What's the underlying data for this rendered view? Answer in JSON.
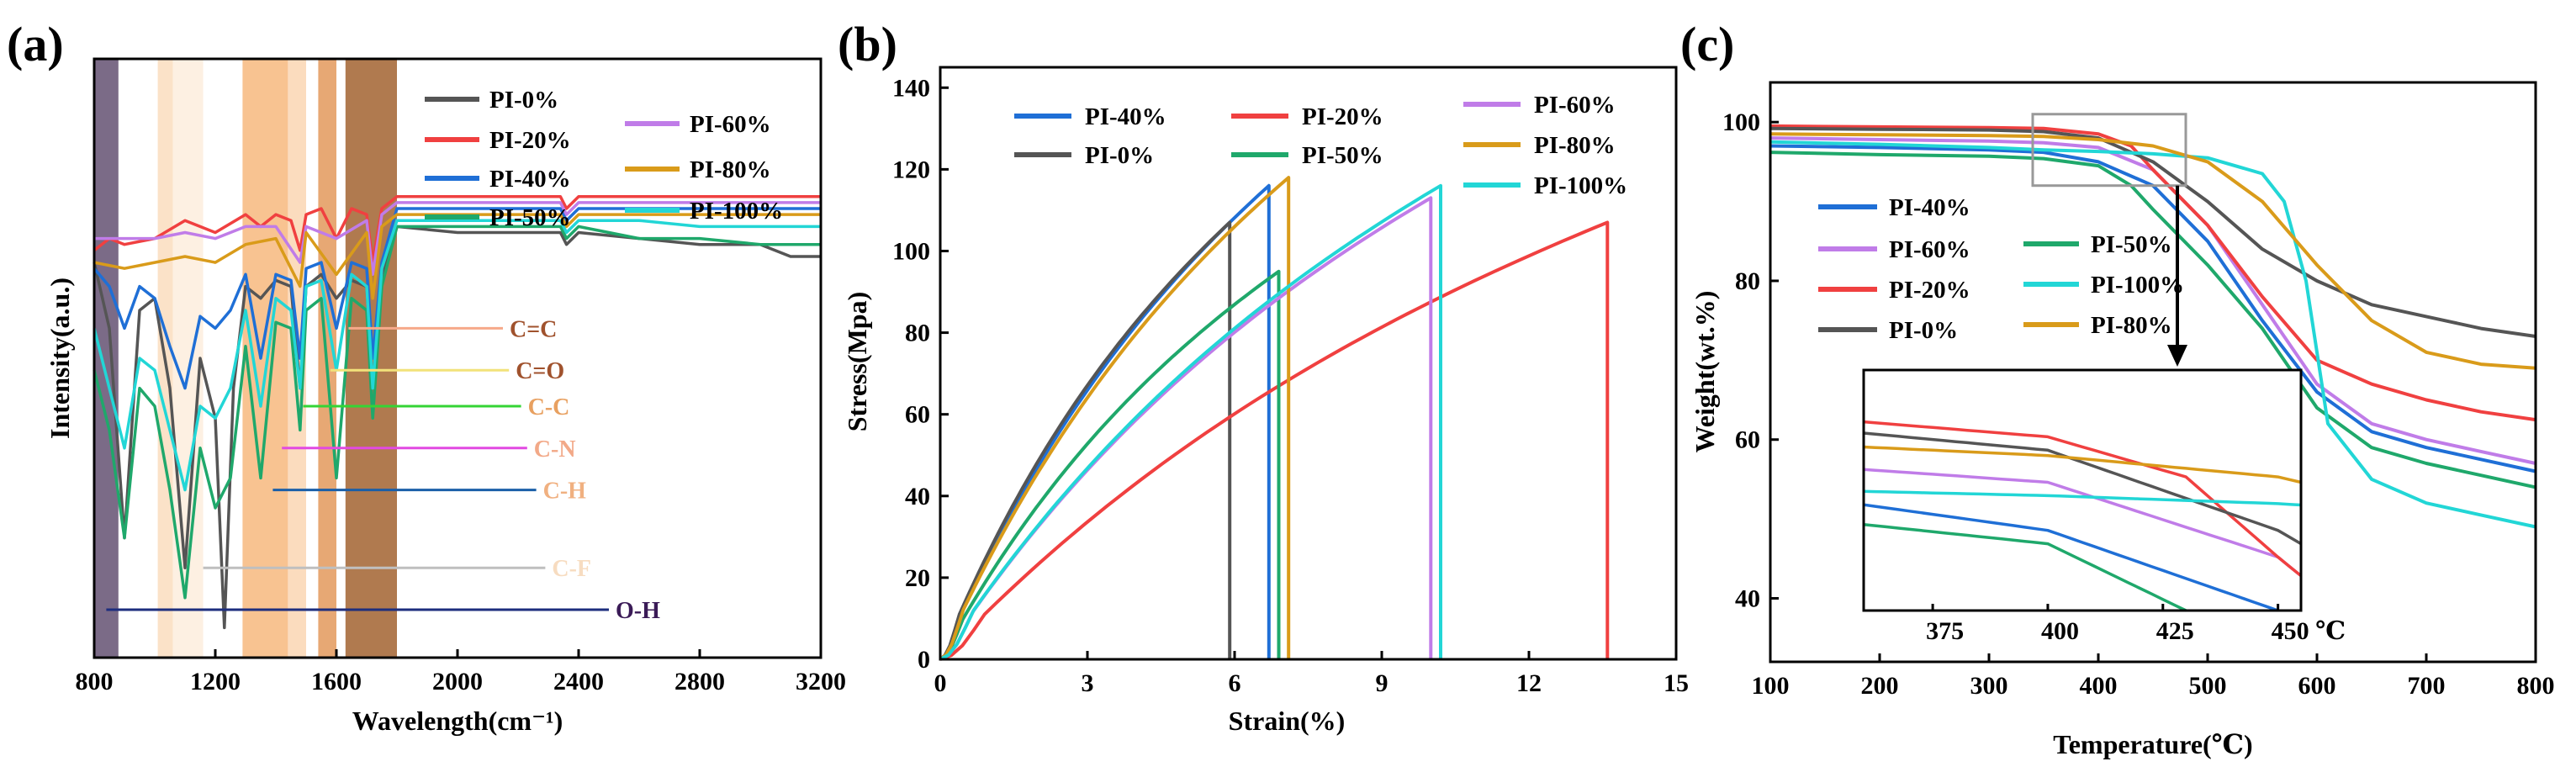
{
  "colors": {
    "PI-0%": "#555555",
    "PI-20%": "#f04040",
    "PI-40%": "#1f6fd6",
    "PI-50%": "#1fa86b",
    "PI-60%": "#c07ce8",
    "PI-80%": "#d99b1a",
    "PI-100%": "#22d6d6"
  },
  "chart_data": [
    {
      "panel": "(a)",
      "type": "line",
      "title": "",
      "xlabel": "Wavelength(cm⁻¹)",
      "ylabel": "Intensity(a.u.)",
      "xlim": [
        800,
        3200
      ],
      "ylim": [
        0,
        1
      ],
      "x_ticks": [
        800,
        1200,
        1600,
        2000,
        2400,
        2800,
        3200
      ],
      "series": [
        {
          "name": "PI-0%",
          "x": [
            800,
            850,
            900,
            950,
            1000,
            1050,
            1100,
            1150,
            1200,
            1230,
            1260,
            1300,
            1350,
            1400,
            1450,
            1480,
            1500,
            1550,
            1600,
            1650,
            1700,
            1720,
            1750,
            1800,
            2000,
            2200,
            2340,
            2360,
            2400,
            2600,
            2800,
            3000,
            3100,
            3200
          ],
          "y": [
            0.66,
            0.55,
            0.2,
            0.58,
            0.6,
            0.45,
            0.15,
            0.5,
            0.4,
            0.05,
            0.45,
            0.62,
            0.6,
            0.63,
            0.62,
            0.45,
            0.62,
            0.64,
            0.6,
            0.63,
            0.62,
            0.45,
            0.64,
            0.72,
            0.71,
            0.71,
            0.71,
            0.69,
            0.71,
            0.7,
            0.69,
            0.69,
            0.67,
            0.67
          ]
        },
        {
          "name": "PI-20%",
          "x": [
            800,
            850,
            900,
            1000,
            1100,
            1200,
            1300,
            1350,
            1400,
            1450,
            1480,
            1500,
            1550,
            1600,
            1650,
            1700,
            1720,
            1750,
            1800,
            2000,
            2200,
            2340,
            2360,
            2400,
            2600,
            2800,
            3000,
            3200
          ],
          "y": [
            0.68,
            0.7,
            0.69,
            0.7,
            0.73,
            0.71,
            0.74,
            0.72,
            0.74,
            0.73,
            0.68,
            0.74,
            0.75,
            0.7,
            0.75,
            0.74,
            0.66,
            0.75,
            0.77,
            0.77,
            0.77,
            0.77,
            0.75,
            0.77,
            0.77,
            0.77,
            0.77,
            0.77
          ]
        },
        {
          "name": "PI-40%",
          "x": [
            800,
            850,
            900,
            950,
            1000,
            1050,
            1100,
            1150,
            1200,
            1250,
            1300,
            1350,
            1400,
            1450,
            1480,
            1500,
            1550,
            1600,
            1650,
            1700,
            1720,
            1750,
            1800,
            2000,
            2200,
            2340,
            2360,
            2400,
            2600,
            2800,
            3000,
            3200
          ],
          "y": [
            0.65,
            0.62,
            0.55,
            0.62,
            0.6,
            0.52,
            0.45,
            0.57,
            0.55,
            0.58,
            0.64,
            0.5,
            0.64,
            0.63,
            0.5,
            0.65,
            0.66,
            0.55,
            0.66,
            0.65,
            0.5,
            0.66,
            0.75,
            0.75,
            0.75,
            0.75,
            0.73,
            0.75,
            0.75,
            0.75,
            0.75,
            0.75
          ]
        },
        {
          "name": "PI-50%",
          "x": [
            800,
            850,
            900,
            950,
            1000,
            1050,
            1100,
            1150,
            1200,
            1250,
            1300,
            1350,
            1400,
            1450,
            1480,
            1500,
            1550,
            1600,
            1650,
            1700,
            1720,
            1750,
            1800,
            2000,
            2200,
            2340,
            2360,
            2400,
            2600,
            2800,
            3000,
            3200
          ],
          "y": [
            0.48,
            0.38,
            0.2,
            0.45,
            0.42,
            0.28,
            0.1,
            0.35,
            0.25,
            0.3,
            0.52,
            0.3,
            0.56,
            0.55,
            0.38,
            0.58,
            0.6,
            0.3,
            0.6,
            0.58,
            0.4,
            0.62,
            0.72,
            0.72,
            0.72,
            0.72,
            0.7,
            0.72,
            0.7,
            0.7,
            0.69,
            0.69
          ]
        },
        {
          "name": "PI-60%",
          "x": [
            800,
            900,
            1000,
            1100,
            1200,
            1300,
            1400,
            1480,
            1500,
            1600,
            1700,
            1720,
            1750,
            1800,
            2000,
            2200,
            2340,
            2360,
            2400,
            2600,
            2800,
            3000,
            3200
          ],
          "y": [
            0.7,
            0.7,
            0.7,
            0.71,
            0.7,
            0.72,
            0.72,
            0.66,
            0.72,
            0.7,
            0.73,
            0.64,
            0.74,
            0.76,
            0.76,
            0.76,
            0.76,
            0.74,
            0.76,
            0.76,
            0.76,
            0.76,
            0.76
          ]
        },
        {
          "name": "PI-80%",
          "x": [
            800,
            900,
            1000,
            1100,
            1200,
            1300,
            1400,
            1480,
            1500,
            1600,
            1700,
            1720,
            1750,
            1800,
            2000,
            2200,
            2340,
            2360,
            2400,
            2600,
            2800,
            3000,
            3200
          ],
          "y": [
            0.66,
            0.65,
            0.66,
            0.67,
            0.66,
            0.69,
            0.7,
            0.62,
            0.71,
            0.64,
            0.71,
            0.6,
            0.72,
            0.74,
            0.74,
            0.74,
            0.74,
            0.72,
            0.74,
            0.74,
            0.74,
            0.74,
            0.74
          ]
        },
        {
          "name": "PI-100%",
          "x": [
            800,
            850,
            900,
            950,
            1000,
            1050,
            1100,
            1150,
            1200,
            1250,
            1300,
            1350,
            1400,
            1450,
            1480,
            1500,
            1550,
            1600,
            1650,
            1700,
            1720,
            1750,
            1800,
            2000,
            2200,
            2340,
            2360,
            2400,
            2600,
            2800,
            3000,
            3200
          ],
          "y": [
            0.55,
            0.45,
            0.35,
            0.5,
            0.48,
            0.38,
            0.28,
            0.42,
            0.4,
            0.45,
            0.58,
            0.42,
            0.6,
            0.58,
            0.45,
            0.62,
            0.63,
            0.48,
            0.64,
            0.62,
            0.45,
            0.65,
            0.73,
            0.73,
            0.73,
            0.73,
            0.71,
            0.73,
            0.73,
            0.72,
            0.72,
            0.72
          ]
        }
      ],
      "bands": [
        {
          "x1": 800,
          "x2": 880,
          "color": "#7b6b87"
        },
        {
          "x1": 1010,
          "x2": 1060,
          "color": "#fbe2c8"
        },
        {
          "x1": 1060,
          "x2": 1160,
          "color": "#fdf0e2"
        },
        {
          "x1": 1290,
          "x2": 1440,
          "color": "#f8c391"
        },
        {
          "x1": 1440,
          "x2": 1500,
          "color": "#fbdcbe"
        },
        {
          "x1": 1540,
          "x2": 1600,
          "color": "#e7a874"
        },
        {
          "x1": 1630,
          "x2": 1800,
          "color": "#b07a4f"
        }
      ],
      "annotations": [
        {
          "label": "C=C",
          "x1": 1640,
          "x2": 2150,
          "y": 0.55,
          "line_color": "#f6a98a",
          "text_color": "#a0522d"
        },
        {
          "label": "C=O",
          "x1": 1580,
          "x2": 2170,
          "y": 0.48,
          "line_color": "#f2e27a",
          "text_color": "#a0522d"
        },
        {
          "label": "C-C",
          "x1": 1490,
          "x2": 2210,
          "y": 0.42,
          "line_color": "#35d435",
          "text_color": "#e8a060"
        },
        {
          "label": "C-N",
          "x1": 1420,
          "x2": 2230,
          "y": 0.35,
          "line_color": "#e24ae2",
          "text_color": "#f2a988"
        },
        {
          "label": "C-H",
          "x1": 1390,
          "x2": 2260,
          "y": 0.28,
          "line_color": "#1a5fa8",
          "text_color": "#f0b080"
        },
        {
          "label": "C-F",
          "x1": 1160,
          "x2": 2290,
          "y": 0.15,
          "line_color": "#bfbfbf",
          "text_color": "#f7dcc0"
        },
        {
          "label": "O-H",
          "x1": 840,
          "x2": 2500,
          "y": 0.08,
          "line_color": "#1d2e7e",
          "text_color": "#3b1b57"
        }
      ],
      "legend": [
        "PI-0%",
        "PI-20%",
        "PI-40%",
        "PI-50%",
        "PI-60%",
        "PI-80%",
        "PI-100%"
      ]
    },
    {
      "panel": "(b)",
      "type": "line",
      "title": "",
      "xlabel": "Strain(%)",
      "ylabel": "Stress(Mpa)",
      "xlim": [
        0,
        15
      ],
      "ylim": [
        0,
        145
      ],
      "x_ticks": [
        0,
        3,
        6,
        9,
        12,
        15
      ],
      "y_ticks": [
        0,
        20,
        40,
        60,
        80,
        100,
        120,
        140
      ],
      "series": [
        {
          "name": "PI-40%",
          "max_strain": 6.7,
          "max_stress": 116
        },
        {
          "name": "PI-0%",
          "max_strain": 5.9,
          "max_stress": 107
        },
        {
          "name": "PI-20%",
          "max_strain": 13.6,
          "max_stress": 107
        },
        {
          "name": "PI-50%",
          "max_strain": 6.9,
          "max_stress": 95
        },
        {
          "name": "PI-60%",
          "max_strain": 10.0,
          "max_stress": 113
        },
        {
          "name": "PI-80%",
          "max_strain": 7.1,
          "max_stress": 118
        },
        {
          "name": "PI-100%",
          "max_strain": 10.2,
          "max_stress": 116
        }
      ],
      "legend": [
        "PI-40%",
        "PI-0%",
        "PI-20%",
        "PI-50%",
        "PI-60%",
        "PI-80%",
        "PI-100%"
      ]
    },
    {
      "panel": "(c)",
      "type": "line",
      "title": "",
      "xlabel": "Temperature(℃)",
      "ylabel": "Weight(wt.%)",
      "xlim": [
        100,
        800
      ],
      "ylim": [
        32,
        105
      ],
      "x_ticks": [
        100,
        200,
        300,
        400,
        500,
        600,
        700,
        800
      ],
      "y_ticks": [
        40,
        60,
        80,
        100
      ],
      "series": [
        {
          "name": "PI-40%",
          "x": [
            100,
            200,
            300,
            350,
            400,
            450,
            500,
            550,
            600,
            650,
            700,
            750,
            800
          ],
          "y": [
            97.0,
            96.8,
            96.5,
            96.2,
            95.0,
            92.0,
            85.0,
            75.0,
            66.0,
            61.0,
            59.0,
            57.5,
            56.0
          ]
        },
        {
          "name": "PI-60%",
          "x": [
            100,
            200,
            300,
            350,
            400,
            450,
            500,
            550,
            600,
            650,
            700,
            750,
            800
          ],
          "y": [
            98.0,
            97.8,
            97.6,
            97.4,
            96.8,
            94.0,
            87.0,
            77.0,
            67.0,
            62.0,
            60.0,
            58.5,
            57.0
          ]
        },
        {
          "name": "PI-20%",
          "x": [
            100,
            200,
            300,
            350,
            400,
            430,
            450,
            500,
            550,
            600,
            650,
            700,
            750,
            800
          ],
          "y": [
            99.5,
            99.4,
            99.3,
            99.2,
            98.5,
            97.0,
            94.0,
            87.0,
            78.0,
            70.0,
            67.0,
            65.0,
            63.5,
            62.5
          ]
        },
        {
          "name": "PI-0%",
          "x": [
            100,
            200,
            300,
            350,
            400,
            450,
            500,
            550,
            600,
            650,
            700,
            750,
            800
          ],
          "y": [
            99.2,
            99.1,
            99.0,
            98.8,
            98.0,
            95.0,
            90.0,
            84.0,
            80.0,
            77.0,
            75.5,
            74.0,
            73.0
          ]
        },
        {
          "name": "PI-50%",
          "x": [
            100,
            200,
            300,
            350,
            400,
            430,
            450,
            500,
            550,
            600,
            650,
            700,
            750,
            800
          ],
          "y": [
            96.2,
            95.9,
            95.7,
            95.4,
            94.5,
            92.0,
            89.0,
            82.0,
            74.0,
            64.0,
            59.0,
            57.0,
            55.5,
            54.0
          ]
        },
        {
          "name": "PI-100%",
          "x": [
            100,
            200,
            300,
            350,
            400,
            450,
            500,
            550,
            570,
            590,
            610,
            650,
            700,
            750,
            800
          ],
          "y": [
            97.5,
            97.2,
            96.8,
            96.5,
            96.3,
            96.0,
            95.5,
            93.5,
            90.0,
            80.0,
            62.0,
            55.0,
            52.0,
            50.5,
            49.0
          ]
        },
        {
          "name": "PI-80%",
          "x": [
            100,
            200,
            300,
            350,
            400,
            450,
            500,
            550,
            600,
            650,
            700,
            750,
            800
          ],
          "y": [
            98.5,
            98.4,
            98.3,
            98.2,
            97.8,
            97.0,
            95.0,
            90.0,
            82.0,
            75.0,
            71.0,
            69.5,
            69.0
          ]
        }
      ],
      "inset": {
        "xlim": [
          360,
          455
        ],
        "x_ticks": [
          375,
          400,
          425,
          450
        ],
        "x_tick_labels": [
          "375",
          "400",
          "425",
          "450 ℃"
        ],
        "zoom_box": {
          "x1": 340,
          "x2": 480,
          "y1": 92,
          "y2": 101
        }
      },
      "legend": [
        "PI-40%",
        "PI-60%",
        "PI-20%",
        "PI-0%",
        "PI-50%",
        "PI-100%",
        "PI-80%"
      ]
    }
  ]
}
